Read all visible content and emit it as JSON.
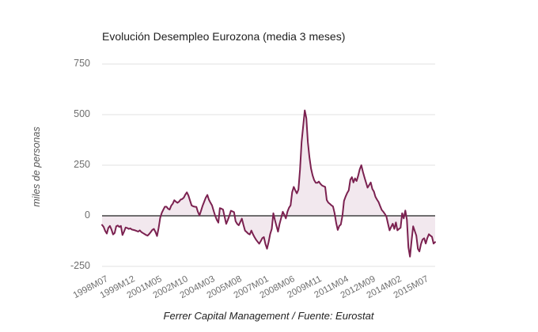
{
  "title": "Evolución Desempleo Eurozona (media 3 meses)",
  "caption": "Ferrer Capital Management / Fuente: Eurostat",
  "y_axis": {
    "label": "miles de personas"
  },
  "colors": {
    "line": "#7b2150",
    "fill": "#f2e8ee",
    "zero_line": "#404040",
    "gridline": "#e0e0e0",
    "tick_text": "#6e6e6e",
    "title_text": "#212121"
  },
  "chart_data": {
    "type": "area",
    "title": "Evolución Desempleo Eurozona (media 3 meses)",
    "xlabel": "",
    "ylabel": "miles de personas",
    "ylim": [
      -250,
      750
    ],
    "y_ticks": [
      750,
      500,
      250,
      0,
      -250
    ],
    "baseline": 0,
    "grid": true,
    "legend": "none",
    "x_start": "1998M07",
    "x_frequency": "monthly",
    "x_tick_labels": [
      "1998M07",
      "1999M12",
      "2001M05",
      "2002M10",
      "2004M03",
      "2005M08",
      "2007M01",
      "2008M06",
      "2009M11",
      "2011M04",
      "2012M09",
      "2014M02",
      "2015M07"
    ],
    "x_tick_indices": [
      0,
      17,
      34,
      51,
      68,
      85,
      102,
      119,
      136,
      153,
      170,
      187,
      204
    ],
    "values": [
      -45,
      -55,
      -75,
      -88,
      -60,
      -50,
      -68,
      -92,
      -85,
      -52,
      -48,
      -55,
      -50,
      -95,
      -78,
      -58,
      -60,
      -65,
      -62,
      -68,
      -70,
      -72,
      -75,
      -78,
      -72,
      -80,
      -85,
      -90,
      -95,
      -98,
      -90,
      -80,
      -70,
      -65,
      -80,
      -100,
      -60,
      -10,
      15,
      30,
      45,
      45,
      35,
      31,
      50,
      60,
      77,
      70,
      64,
      70,
      80,
      83,
      90,
      105,
      116,
      100,
      75,
      51,
      47,
      45,
      44,
      20,
      2,
      25,
      50,
      70,
      90,
      103,
      80,
      65,
      51,
      25,
      0,
      -20,
      -34,
      38,
      35,
      31,
      -5,
      -40,
      -21,
      0,
      25,
      22,
      18,
      -27,
      -40,
      -47,
      -30,
      -14,
      -45,
      -73,
      -80,
      -88,
      -92,
      -73,
      -90,
      -105,
      -118,
      -128,
      -138,
      -125,
      -110,
      -105,
      -140,
      -163,
      -130,
      -90,
      -65,
      13,
      -20,
      -50,
      -78,
      -40,
      -10,
      20,
      5,
      -13,
      20,
      40,
      52,
      117,
      143,
      125,
      111,
      130,
      228,
      365,
      443,
      521,
      482,
      365,
      290,
      234,
      200,
      176,
      163,
      163,
      169,
      158,
      150,
      146,
      143,
      78,
      65,
      59,
      52,
      46,
      13,
      -35,
      -70,
      -50,
      -43,
      0,
      74,
      95,
      113,
      126,
      178,
      191,
      165,
      185,
      172,
      198,
      230,
      250,
      217,
      191,
      165,
      139,
      152,
      165,
      133,
      120,
      94,
      80,
      68,
      48,
      29,
      20,
      9,
      -4,
      -39,
      -72,
      -55,
      -39,
      -65,
      -33,
      -72,
      -65,
      -59,
      13,
      -13,
      26,
      -20,
      -156,
      -202,
      -124,
      -52,
      -75,
      -98,
      -163,
      -176,
      -140,
      -117,
      -111,
      -137,
      -110,
      -91,
      -98,
      -104,
      -137,
      -130
    ]
  }
}
